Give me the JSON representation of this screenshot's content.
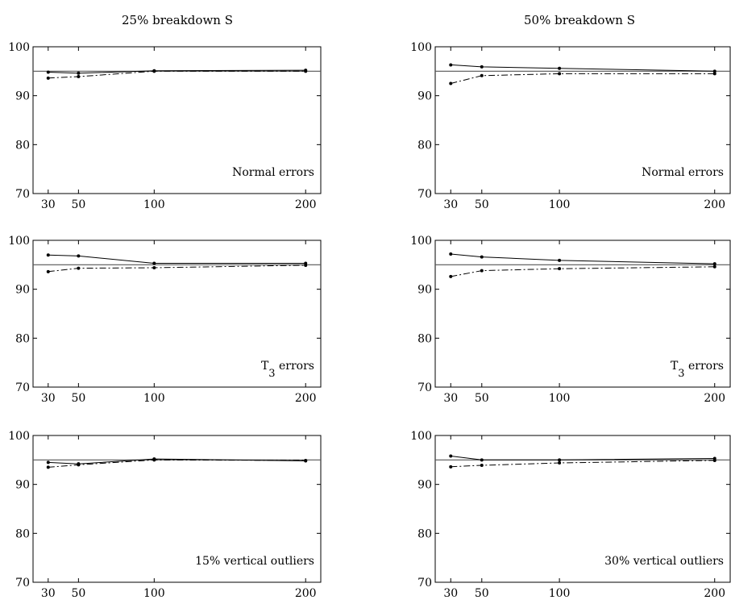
{
  "column_titles": [
    "25% breakdown S",
    "50% breakdown S"
  ],
  "chart_data": [
    {
      "type": "line",
      "row": 0,
      "col": 0,
      "annotation": {
        "text": "Normal errors",
        "subscript": ""
      },
      "x": [
        30,
        50,
        100,
        200
      ],
      "xlim": [
        20,
        210
      ],
      "ylim": [
        70,
        100
      ],
      "xticks": [
        30,
        50,
        100,
        200
      ],
      "yticks": [
        70,
        80,
        90,
        100
      ],
      "reference": 95,
      "series": [
        {
          "style": "solid",
          "values": [
            94.8,
            94.6,
            95.1,
            95.2
          ]
        },
        {
          "style": "dashdot",
          "values": [
            93.6,
            93.9,
            95.0,
            95.0
          ]
        }
      ]
    },
    {
      "type": "line",
      "row": 0,
      "col": 1,
      "annotation": {
        "text": "Normal errors",
        "subscript": ""
      },
      "x": [
        30,
        50,
        100,
        200
      ],
      "xlim": [
        20,
        210
      ],
      "ylim": [
        70,
        100
      ],
      "xticks": [
        30,
        50,
        100,
        200
      ],
      "yticks": [
        70,
        80,
        90,
        100
      ],
      "reference": 95,
      "series": [
        {
          "style": "solid",
          "values": [
            96.3,
            95.9,
            95.6,
            95.0
          ]
        },
        {
          "style": "dashdot",
          "values": [
            92.5,
            94.1,
            94.5,
            94.5
          ]
        }
      ]
    },
    {
      "type": "line",
      "row": 1,
      "col": 0,
      "annotation": {
        "text": "T",
        "subscript": "3",
        "suffix": " errors"
      },
      "x": [
        30,
        50,
        100,
        200
      ],
      "xlim": [
        20,
        210
      ],
      "ylim": [
        70,
        100
      ],
      "xticks": [
        30,
        50,
        100,
        200
      ],
      "yticks": [
        70,
        80,
        90,
        100
      ],
      "reference": 95,
      "series": [
        {
          "style": "solid",
          "values": [
            97.0,
            96.8,
            95.3,
            95.3
          ]
        },
        {
          "style": "dashdot",
          "values": [
            93.6,
            94.3,
            94.4,
            94.9
          ]
        }
      ]
    },
    {
      "type": "line",
      "row": 1,
      "col": 1,
      "annotation": {
        "text": "T",
        "subscript": "3",
        "suffix": " errors"
      },
      "x": [
        30,
        50,
        100,
        200
      ],
      "xlim": [
        20,
        210
      ],
      "ylim": [
        70,
        100
      ],
      "xticks": [
        30,
        50,
        100,
        200
      ],
      "yticks": [
        70,
        80,
        90,
        100
      ],
      "reference": 95,
      "series": [
        {
          "style": "solid",
          "values": [
            97.2,
            96.6,
            95.9,
            95.2
          ]
        },
        {
          "style": "dashdot",
          "values": [
            92.6,
            93.8,
            94.2,
            94.6
          ]
        }
      ]
    },
    {
      "type": "line",
      "row": 2,
      "col": 0,
      "annotation": {
        "text": "15% vertical outliers",
        "subscript": ""
      },
      "x": [
        30,
        50,
        100,
        200
      ],
      "xlim": [
        20,
        210
      ],
      "ylim": [
        70,
        100
      ],
      "xticks": [
        30,
        50,
        100,
        200
      ],
      "yticks": [
        70,
        80,
        90,
        100
      ],
      "reference": 95,
      "series": [
        {
          "style": "solid",
          "values": [
            94.5,
            94.2,
            95.2,
            94.8
          ]
        },
        {
          "style": "dashdot",
          "values": [
            93.5,
            94.0,
            95.0,
            94.9
          ]
        }
      ]
    },
    {
      "type": "line",
      "row": 2,
      "col": 1,
      "annotation": {
        "text": "30% vertical outliers",
        "subscript": ""
      },
      "x": [
        30,
        50,
        100,
        200
      ],
      "xlim": [
        20,
        210
      ],
      "ylim": [
        70,
        100
      ],
      "xticks": [
        30,
        50,
        100,
        200
      ],
      "yticks": [
        70,
        80,
        90,
        100
      ],
      "reference": 95,
      "series": [
        {
          "style": "solid",
          "values": [
            95.8,
            95.0,
            95.0,
            95.3
          ]
        },
        {
          "style": "dashdot",
          "values": [
            93.6,
            93.9,
            94.4,
            94.9
          ]
        }
      ]
    }
  ]
}
